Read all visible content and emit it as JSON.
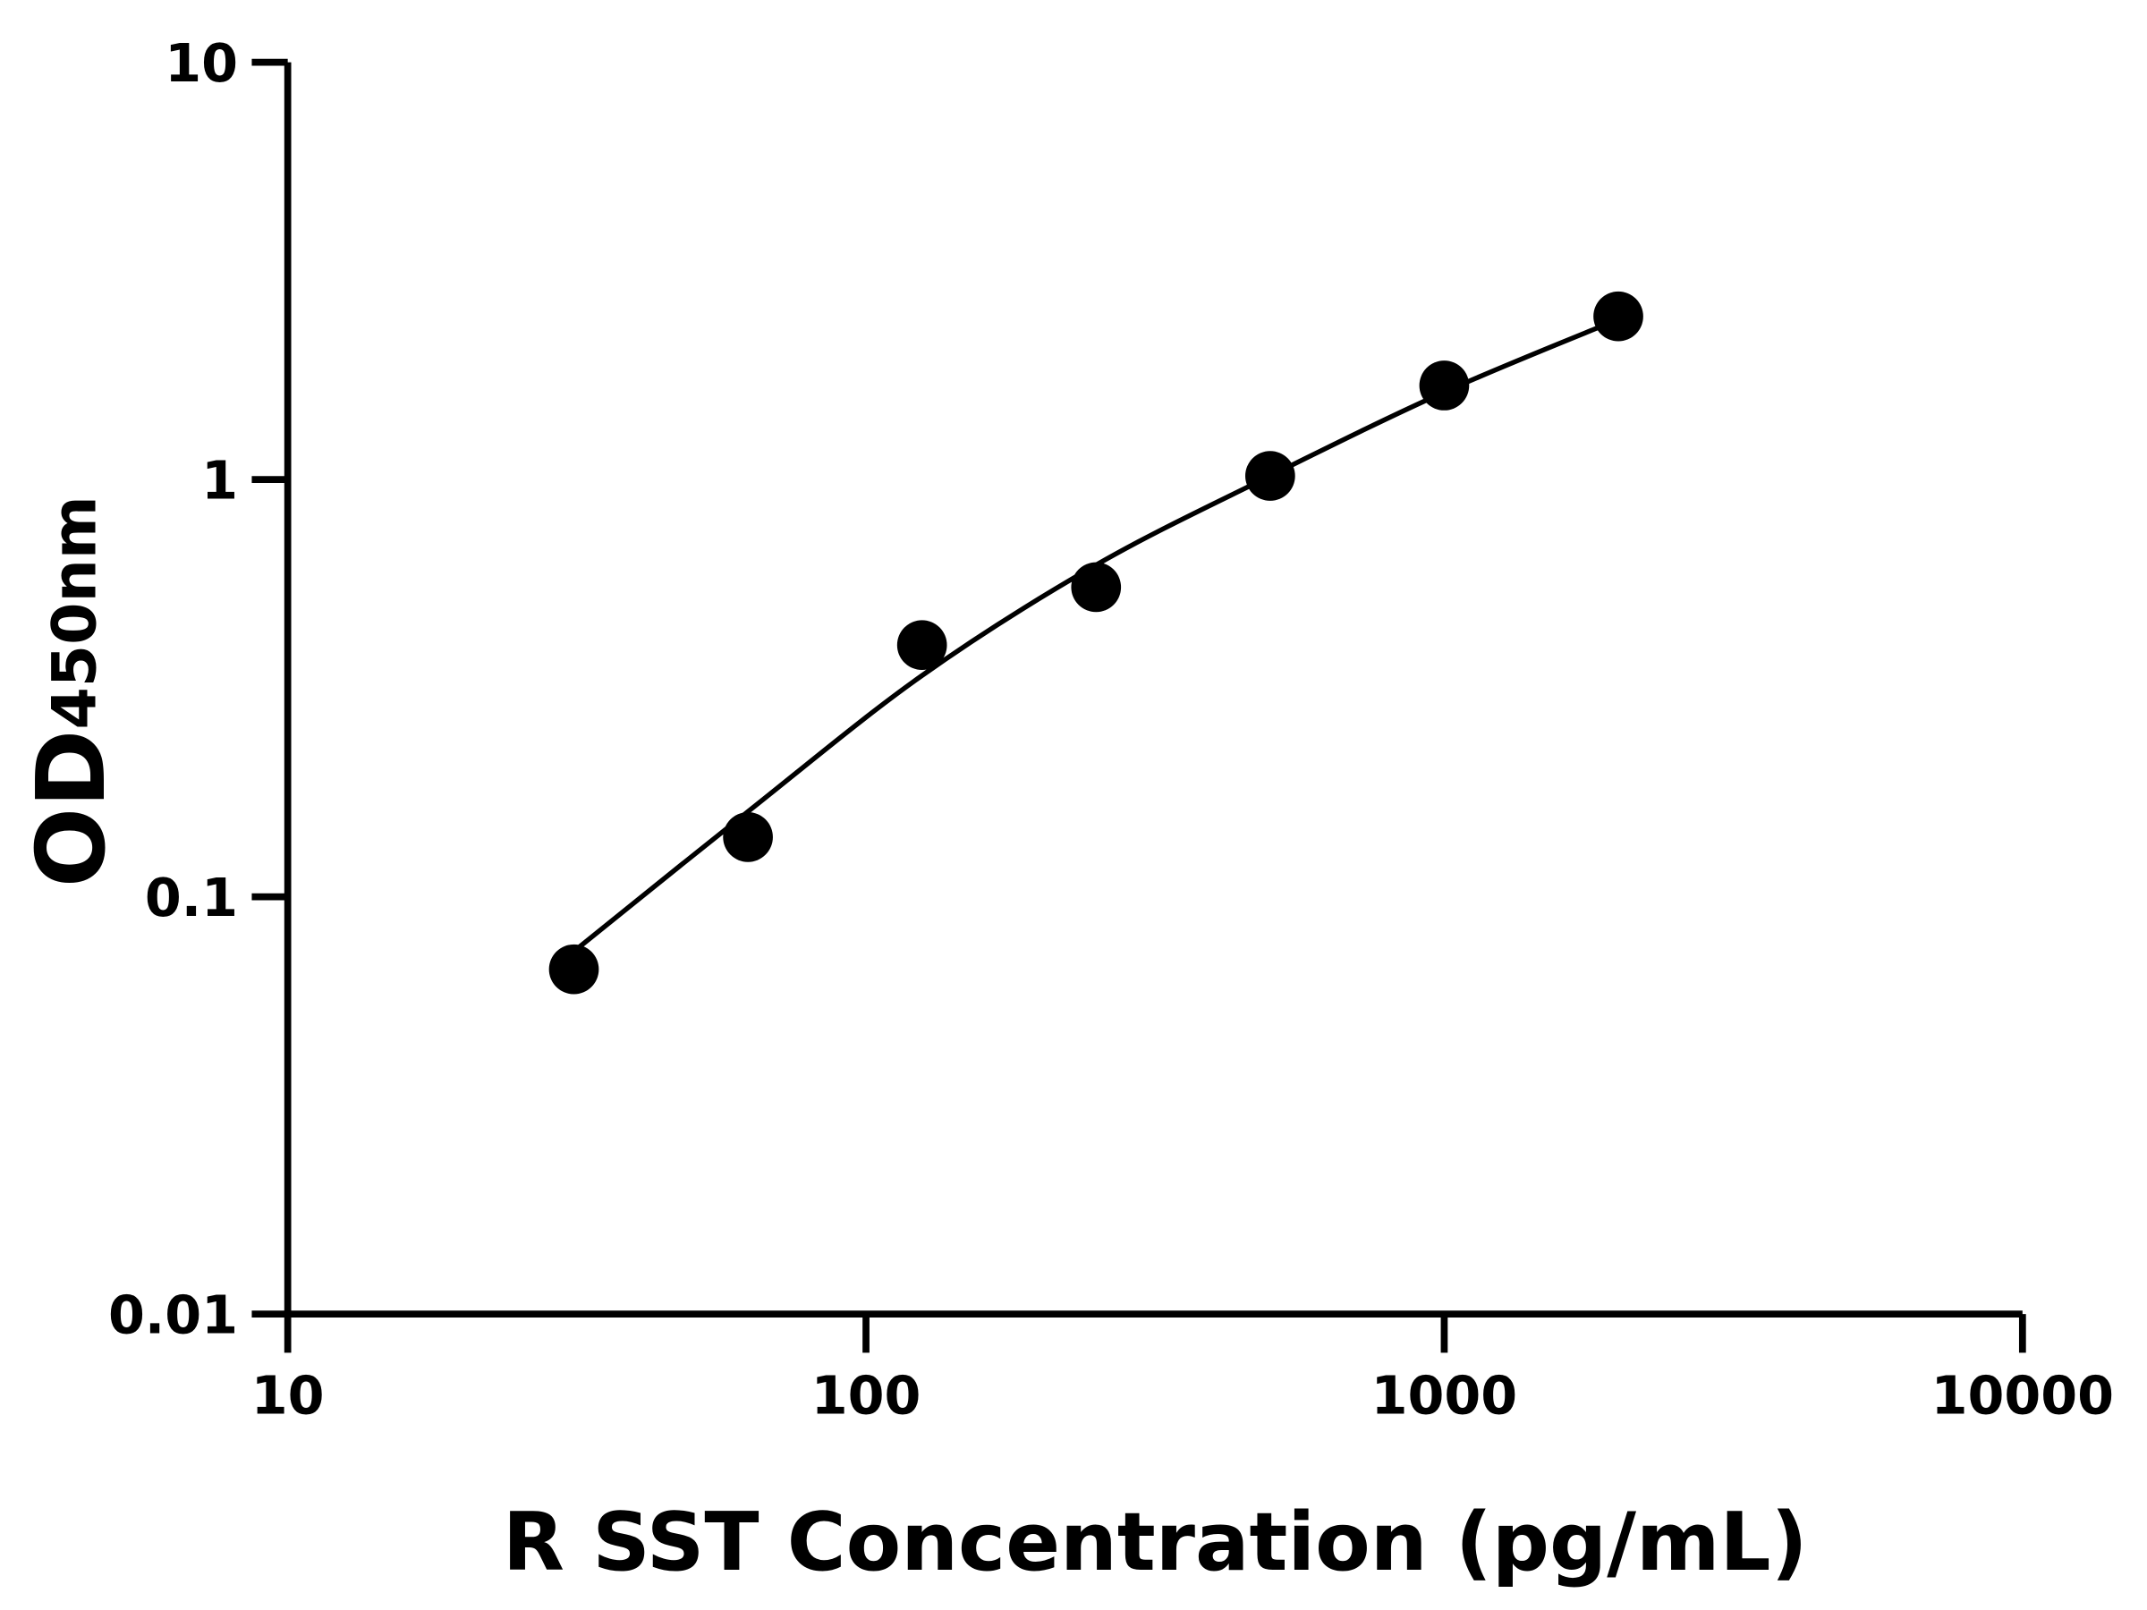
{
  "chart_data": {
    "type": "scatter",
    "xlabel": "R SST Concentration (pg/mL)",
    "ylabel": "OD",
    "ylabel_sub": "450nm",
    "x": [
      31.25,
      62.5,
      125,
      250,
      500,
      1000,
      2000
    ],
    "values": [
      0.067,
      0.139,
      0.401,
      0.552,
      1.02,
      1.68,
      2.46
    ],
    "color": "#000000",
    "curve": {
      "x": [
        31.25,
        62.5,
        125,
        250,
        500,
        1000,
        2000
      ],
      "values": [
        0.074,
        0.16,
        0.339,
        0.624,
        1.02,
        1.62,
        2.42
      ]
    },
    "xlim": [
      10,
      10000
    ],
    "ylim": [
      0.01,
      10
    ],
    "xticks": [
      10,
      100,
      1000,
      10000
    ],
    "yticks": [
      0.01,
      0.1,
      1,
      10
    ],
    "xscale": "log",
    "yscale": "log",
    "grid": false
  }
}
